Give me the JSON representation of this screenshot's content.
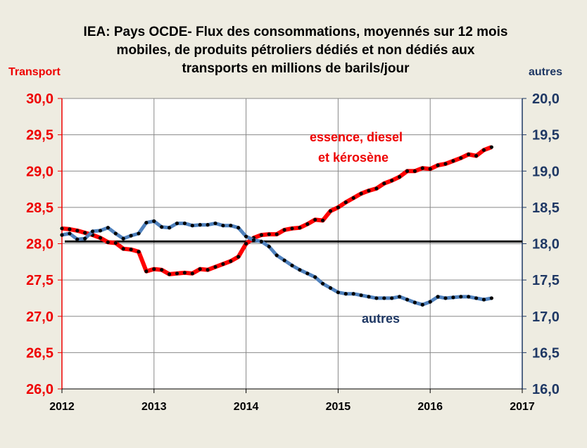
{
  "chart_data": {
    "type": "line",
    "title_lines": [
      "IEA: Pays OCDE- Flux des consommations, moyennés sur 12 mois",
      "mobiles, de produits pétroliers dédiés et non dédiés aux",
      "transports en millions de barils/jour"
    ],
    "ylabel_left": "Transport",
    "ylabel_right": "autres",
    "xlim": [
      2012,
      2017
    ],
    "ylim_left": [
      26,
      30
    ],
    "ylim_right": [
      16,
      20
    ],
    "x_ticks": [
      "2012",
      "2013",
      "2014",
      "2015",
      "2016",
      "2017"
    ],
    "y_ticks_left": [
      "30,0",
      "29,5",
      "29,0",
      "28,5",
      "28,0",
      "27,5",
      "27,0",
      "26,5",
      "26,0"
    ],
    "y_ticks_right": [
      "20,0",
      "19,5",
      "19,0",
      "18,5",
      "18,0",
      "17,5",
      "17,0",
      "16,5",
      "16,0"
    ],
    "grid": true,
    "x_start": 2012.0,
    "x_step_months": 1,
    "series": [
      {
        "name": "essence, diesel et kérosène",
        "label_lines": [
          "essence, diesel",
          "et kérosène"
        ],
        "axis": "left",
        "color": "#ff0000",
        "values": [
          28.21,
          28.2,
          28.18,
          28.15,
          28.12,
          28.08,
          28.02,
          28.01,
          27.93,
          27.92,
          27.89,
          27.62,
          27.65,
          27.64,
          27.58,
          27.59,
          27.6,
          27.59,
          27.65,
          27.64,
          27.68,
          27.72,
          27.76,
          27.82,
          28.0,
          28.08,
          28.12,
          28.13,
          28.13,
          28.19,
          28.21,
          28.22,
          28.27,
          28.33,
          28.32,
          28.45,
          28.5,
          28.57,
          28.63,
          28.69,
          28.73,
          28.76,
          28.83,
          28.87,
          28.92,
          29.0,
          29.0,
          29.04,
          29.03,
          29.08,
          29.1,
          29.14,
          29.18,
          29.23,
          29.21,
          29.29,
          29.33
        ]
      },
      {
        "name": "autres",
        "label_lines": [
          "autres"
        ],
        "axis": "right",
        "color": "#4f81bd",
        "values": [
          18.12,
          18.14,
          18.06,
          18.07,
          18.17,
          18.18,
          18.22,
          18.14,
          18.07,
          18.11,
          18.14,
          18.29,
          18.31,
          18.23,
          18.22,
          18.28,
          18.28,
          18.25,
          18.26,
          18.26,
          18.28,
          18.25,
          18.25,
          18.22,
          18.1,
          18.05,
          18.03,
          17.96,
          17.84,
          17.77,
          17.7,
          17.64,
          17.59,
          17.54,
          17.45,
          17.39,
          17.33,
          17.31,
          17.31,
          17.29,
          17.27,
          17.25,
          17.25,
          17.25,
          17.27,
          17.23,
          17.19,
          17.16,
          17.2,
          17.27,
          17.25,
          17.26,
          17.27,
          17.27,
          17.25,
          17.23,
          17.25
        ]
      }
    ],
    "reference_line": {
      "axis": "left",
      "value": 28.03,
      "color": "#000000"
    }
  }
}
